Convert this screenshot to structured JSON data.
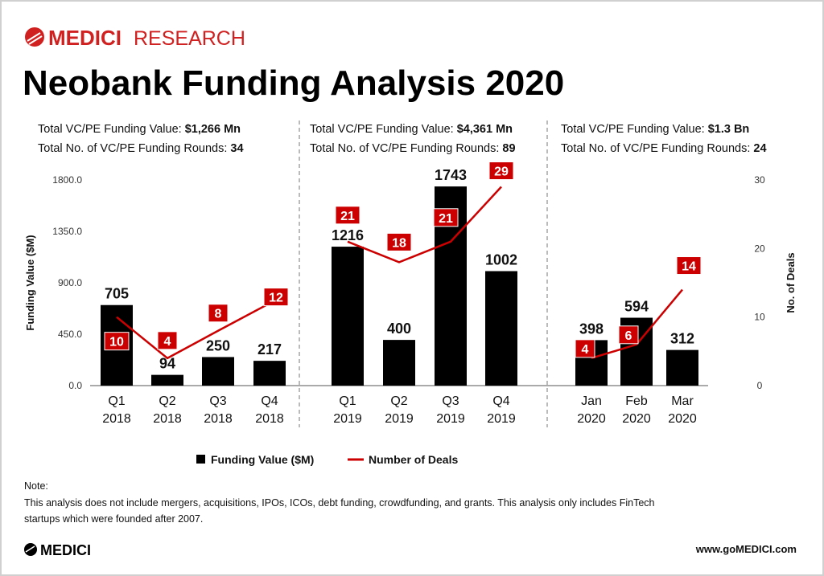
{
  "brand": {
    "logo_text": "MEDICI",
    "logo_suffix": "RESEARCH",
    "footer_logo": "MEDICI",
    "website": "www.goMEDICI.com"
  },
  "title": "Neobank Funding Analysis 2020",
  "groups": [
    {
      "value_label": "Total VC/PE Funding Value: ",
      "value": "$1,266 Mn",
      "rounds_label": "Total No. of VC/PE Funding Rounds: ",
      "rounds": "34"
    },
    {
      "value_label": "Total VC/PE Funding Value: ",
      "value": "$4,361 Mn",
      "rounds_label": "Total No. of VC/PE Funding Rounds: ",
      "rounds": "89"
    },
    {
      "value_label": "Total VC/PE Funding Value: ",
      "value": "$1.3 Bn",
      "rounds_label": "Total No. of VC/PE Funding Rounds: ",
      "rounds": "24"
    }
  ],
  "chart_data": {
    "type": "bar+line",
    "categories": [
      [
        "Q1",
        "2018"
      ],
      [
        "Q2",
        "2018"
      ],
      [
        "Q3",
        "2018"
      ],
      [
        "Q4",
        "2018"
      ],
      [
        "Q1",
        "2019"
      ],
      [
        "Q2",
        "2019"
      ],
      [
        "Q3",
        "2019"
      ],
      [
        "Q4",
        "2019"
      ],
      [
        "Jan",
        "2020"
      ],
      [
        "Feb",
        "2020"
      ],
      [
        "Mar",
        "2020"
      ]
    ],
    "category_groups": [
      [
        0,
        1,
        2,
        3
      ],
      [
        4,
        5,
        6,
        7
      ],
      [
        8,
        9,
        10
      ]
    ],
    "series": [
      {
        "name": "Funding Value ($M)",
        "type": "bar",
        "axis": "left",
        "color": "#000000",
        "values": [
          705,
          94,
          250,
          217,
          1216,
          400,
          1743,
          1002,
          398,
          594,
          312
        ]
      },
      {
        "name": "Number of Deals",
        "type": "line",
        "axis": "right",
        "color": "#cc0000",
        "values": [
          10,
          4,
          8,
          12,
          21,
          18,
          21,
          29,
          4,
          6,
          14
        ]
      }
    ],
    "ylabel": "Funding Value ($M)",
    "y2label": "No. of Deals",
    "ylim": [
      0,
      1800
    ],
    "y2lim": [
      0,
      30
    ],
    "yticks": [
      "0.0",
      "450.0",
      "900.0",
      "1350.0",
      "1800.0"
    ],
    "y2ticks": [
      "0",
      "10",
      "20",
      "30"
    ],
    "legend_position": "bottom",
    "grid": false
  },
  "note": {
    "heading": "Note:",
    "line1": "This analysis does not include mergers, acquisitions, IPOs, ICOs, debt funding, crowdfunding, and grants. This analysis only includes FinTech",
    "line2": "startups which were founded after 2007."
  },
  "colors": {
    "brand_red": "#d0201f",
    "deal_red": "#cc0000"
  }
}
